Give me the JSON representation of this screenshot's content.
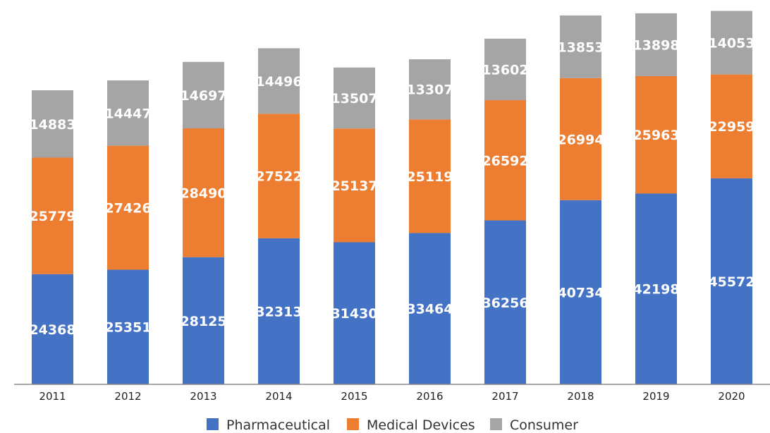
{
  "chart_data": {
    "type": "bar",
    "stacked": true,
    "title": "",
    "xlabel": "",
    "ylabel": "",
    "ylim": [
      0,
      85000
    ],
    "grid": false,
    "legend_position": "bottom",
    "categories": [
      "2011",
      "2012",
      "2013",
      "2014",
      "2015",
      "2016",
      "2017",
      "2018",
      "2019",
      "2020"
    ],
    "series": [
      {
        "name": "Pharmaceutical",
        "color": "#4472C4",
        "values": [
          24368,
          25351,
          28125,
          32313,
          31430,
          33464,
          36256,
          40734,
          42198,
          45572
        ]
      },
      {
        "name": "Medical Devices",
        "color": "#ED7D31",
        "values": [
          25779,
          27426,
          28490,
          27522,
          25137,
          25119,
          26592,
          26994,
          25963,
          22959
        ]
      },
      {
        "name": "Consumer",
        "color": "#A5A5A5",
        "values": [
          14883,
          14447,
          14697,
          14496,
          13507,
          13307,
          13602,
          13853,
          13898,
          14053
        ]
      }
    ]
  }
}
